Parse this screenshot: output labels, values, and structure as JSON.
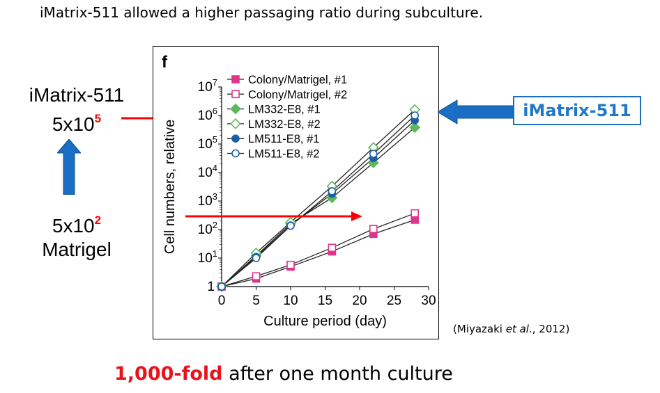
{
  "headline": "iMatrix-511 allowed a higher passaging ratio during subculture.",
  "left_top": {
    "line1": "iMatrix-511",
    "base": "5x10",
    "exp": "5"
  },
  "left_bottom": {
    "base": "5x10",
    "exp": "2",
    "line2": "Matrigel"
  },
  "callout": "iMatrix-511",
  "citation": {
    "pre": "(Miyazaki ",
    "author": "et al.",
    "post": ", 2012)"
  },
  "bottom": {
    "highlight": "1,000-fold",
    "rest": " after one month culture"
  },
  "colors": {
    "pink": "#e0348c",
    "green": "#5cb85c",
    "blue": "#1a5fa8",
    "red": "#ff0000",
    "callout_blue": "#1f78c8"
  },
  "chart_data": {
    "type": "line",
    "panel_label": "f",
    "xlabel": "Culture period (day)",
    "ylabel": "Cell numbers, relative",
    "xlim": [
      0,
      30
    ],
    "ylim": [
      1,
      10000000
    ],
    "yscale": "log",
    "x_ticks": [
      0,
      5,
      10,
      15,
      20,
      25,
      30
    ],
    "y_ticks": [
      {
        "value": 1,
        "base": "1",
        "exp": ""
      },
      {
        "value": 10,
        "base": "10",
        "exp": "1"
      },
      {
        "value": 100,
        "base": "10",
        "exp": "2"
      },
      {
        "value": 1000,
        "base": "10",
        "exp": "3"
      },
      {
        "value": 10000,
        "base": "10",
        "exp": "4"
      },
      {
        "value": 100000,
        "base": "10",
        "exp": "5"
      },
      {
        "value": 1000000,
        "base": "10",
        "exp": "6"
      },
      {
        "value": 10000000,
        "base": "10",
        "exp": "7"
      }
    ],
    "legend_position": "top-left",
    "series": [
      {
        "name": "Colony/Matrigel, #1",
        "marker": "square",
        "filled": true,
        "color": "#e0348c",
        "x": [
          0,
          5,
          10,
          16,
          22,
          28
        ],
        "y": [
          1,
          1.9,
          5,
          17,
          70,
          220
        ]
      },
      {
        "name": "Colony/Matrigel, #2",
        "marker": "square",
        "filled": false,
        "color": "#e0348c",
        "x": [
          0,
          5,
          10,
          16,
          22,
          28
        ],
        "y": [
          1,
          2.3,
          5.8,
          23,
          105,
          370
        ]
      },
      {
        "name": "LM332-E8, #1",
        "marker": "diamond",
        "filled": true,
        "color": "#5cb85c",
        "x": [
          0,
          5,
          10,
          16,
          22,
          28
        ],
        "y": [
          1,
          12,
          160,
          1300,
          22000,
          380000
        ]
      },
      {
        "name": "LM332-E8, #2",
        "marker": "diamond",
        "filled": false,
        "color": "#5cb85c",
        "x": [
          0,
          5,
          10,
          16,
          22,
          28
        ],
        "y": [
          1,
          15,
          180,
          3300,
          75000,
          1600000
        ]
      },
      {
        "name": "LM511-E8, #1",
        "marker": "circle",
        "filled": true,
        "color": "#1a5fa8",
        "x": [
          0,
          5,
          10,
          16,
          22,
          28
        ],
        "y": [
          1,
          11,
          140,
          1800,
          32000,
          680000
        ]
      },
      {
        "name": "LM511-E8, #2",
        "marker": "circle",
        "filled": false,
        "color": "#1a5fa8",
        "x": [
          0,
          5,
          10,
          16,
          22,
          28
        ],
        "y": [
          1,
          10,
          135,
          2200,
          45000,
          1000000
        ]
      }
    ]
  }
}
